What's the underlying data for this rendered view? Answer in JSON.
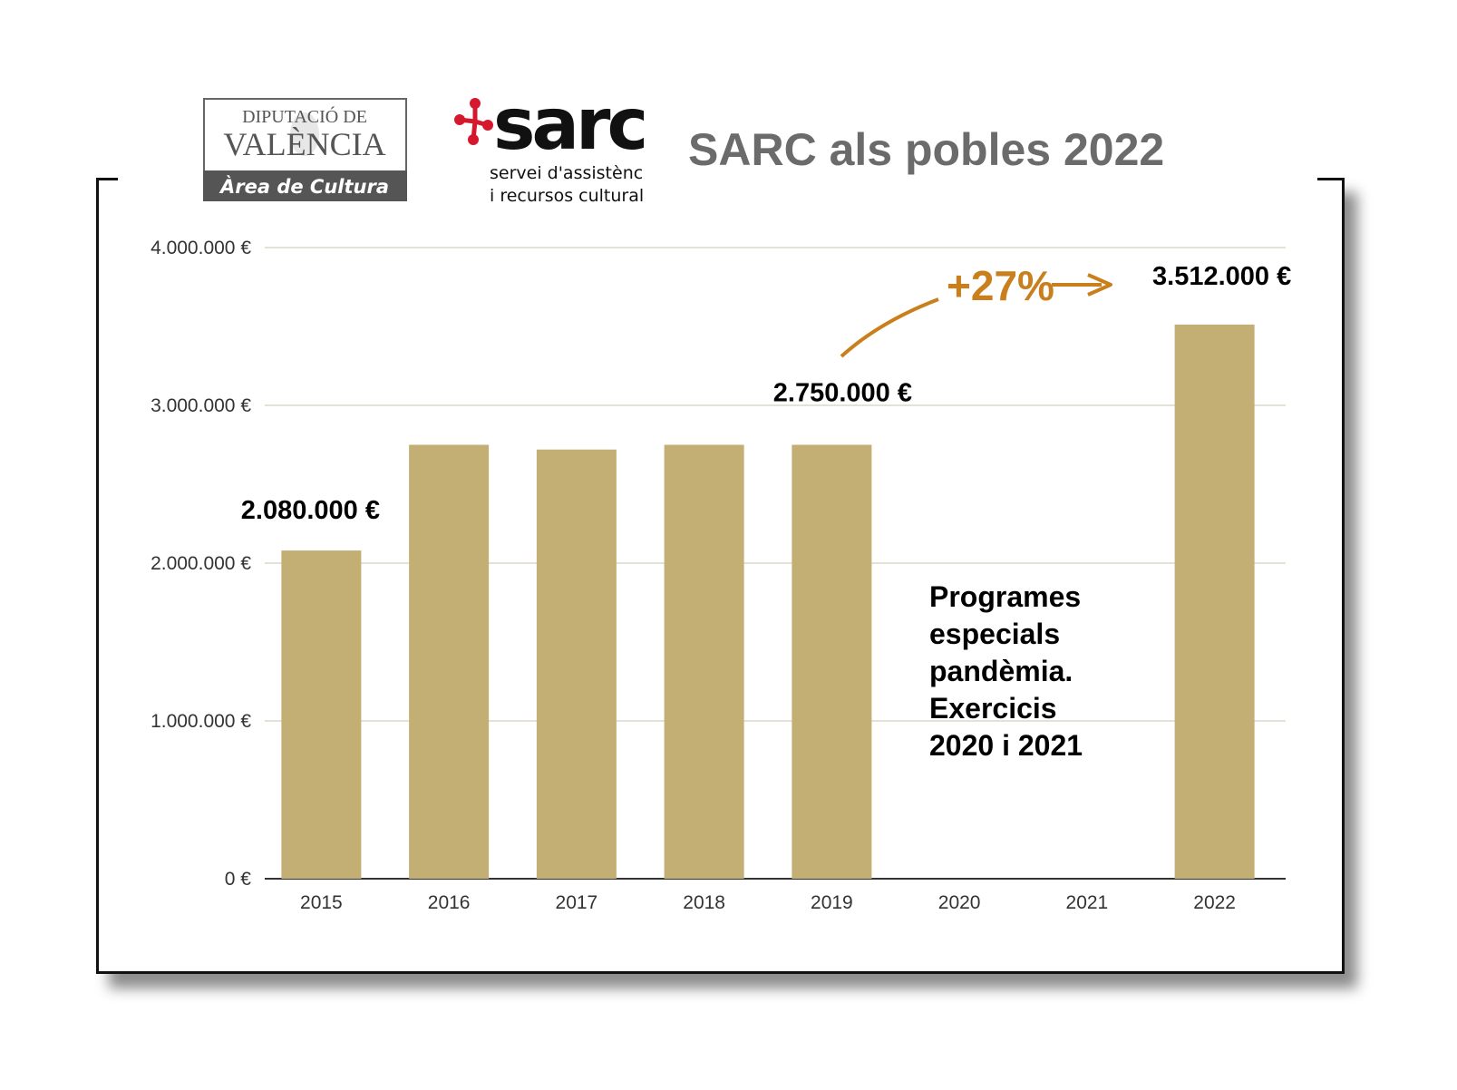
{
  "title": "SARC als pobles 2022",
  "logos": {
    "diputacio": {
      "line1": "DIPUTACIÓ DE",
      "line2": "VALÈNCIA",
      "line3": "Àrea de Cultura"
    },
    "sarc": {
      "name": "sarc",
      "line1": "servei d'assistència",
      "line2": "i recursos culturals",
      "accent": "#d5182e"
    }
  },
  "colors": {
    "bar": "#c3ae73",
    "growth": "#c87f1c",
    "title": "#6b6b6b"
  },
  "annotations": {
    "growth_pct": "+27%",
    "note": "Programes\nespecials\npandèmia.\nExercicis\n2020 i 2021"
  },
  "chart_data": {
    "type": "bar",
    "categories": [
      "2015",
      "2016",
      "2017",
      "2018",
      "2019",
      "2020",
      "2021",
      "2022"
    ],
    "values": [
      2080000,
      2750000,
      2720000,
      2750000,
      2750000,
      null,
      null,
      3512000
    ],
    "data_labels": [
      {
        "category": "2015",
        "text": "2.080.000 €"
      },
      {
        "category": "2019",
        "text": "2.750.000 €"
      },
      {
        "category": "2022",
        "text": "3.512.000 €"
      }
    ],
    "ylim": [
      0,
      4000000
    ],
    "yticks": [
      0,
      1000000,
      2000000,
      3000000,
      4000000
    ],
    "ytick_labels": [
      "0 €",
      "1.000.000 €",
      "2.000.000 €",
      "3.000.000 €",
      "4.000.000 €"
    ],
    "grid": true
  }
}
